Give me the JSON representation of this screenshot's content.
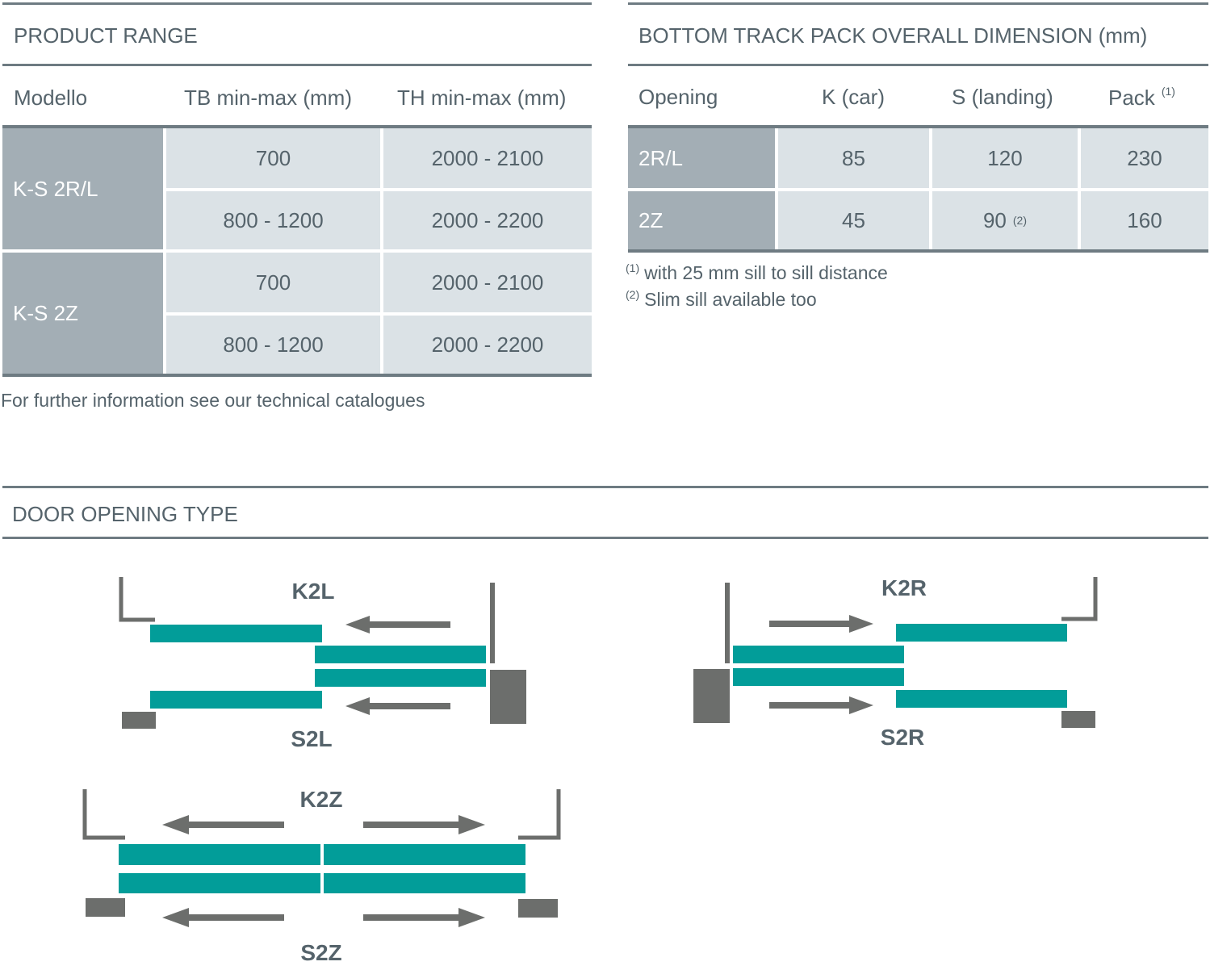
{
  "product_range": {
    "title": "PRODUCT RANGE",
    "headers": [
      "Modello",
      "TB min-max (mm)",
      "TH min-max (mm)"
    ],
    "groups": [
      {
        "model": "K-S 2R/L",
        "rows": [
          {
            "tb": "700",
            "th": "2000 - 2100"
          },
          {
            "tb": "800 - 1200",
            "th": "2000 - 2200"
          }
        ]
      },
      {
        "model": "K-S 2Z",
        "rows": [
          {
            "tb": "700",
            "th": "2000 - 2100"
          },
          {
            "tb": "800 - 1200",
            "th": "2000 - 2200"
          }
        ]
      }
    ],
    "footnote": "For further information see our technical catalogues"
  },
  "bottom_track": {
    "title": "BOTTOM TRACK PACK OVERALL DIMENSION (mm)",
    "headers": {
      "opening": "Opening",
      "k": "K (car)",
      "s": "S (landing)",
      "pack": "Pack",
      "pack_sup": "(1)"
    },
    "rows": [
      {
        "opening": "2R/L",
        "k": "85",
        "s": "120",
        "s_sup": "",
        "pack": "230"
      },
      {
        "opening": "2Z",
        "k": "45",
        "s": "90",
        "s_sup": "(2)",
        "pack": "160"
      }
    ],
    "notes": [
      {
        "mark": "(1)",
        "text": "with 25 mm sill to sill distance"
      },
      {
        "mark": "(2)",
        "text": "Slim sill available too"
      }
    ]
  },
  "door_opening": {
    "title": "DOOR OPENING TYPE",
    "labels": {
      "k2l": "K2L",
      "s2l": "S2L",
      "k2r": "K2R",
      "s2r": "S2R",
      "k2z": "K2Z",
      "s2z": "S2Z"
    },
    "colors": {
      "panel": "#029d99",
      "frame": "#6c6e6c",
      "label": "#55636b"
    }
  }
}
